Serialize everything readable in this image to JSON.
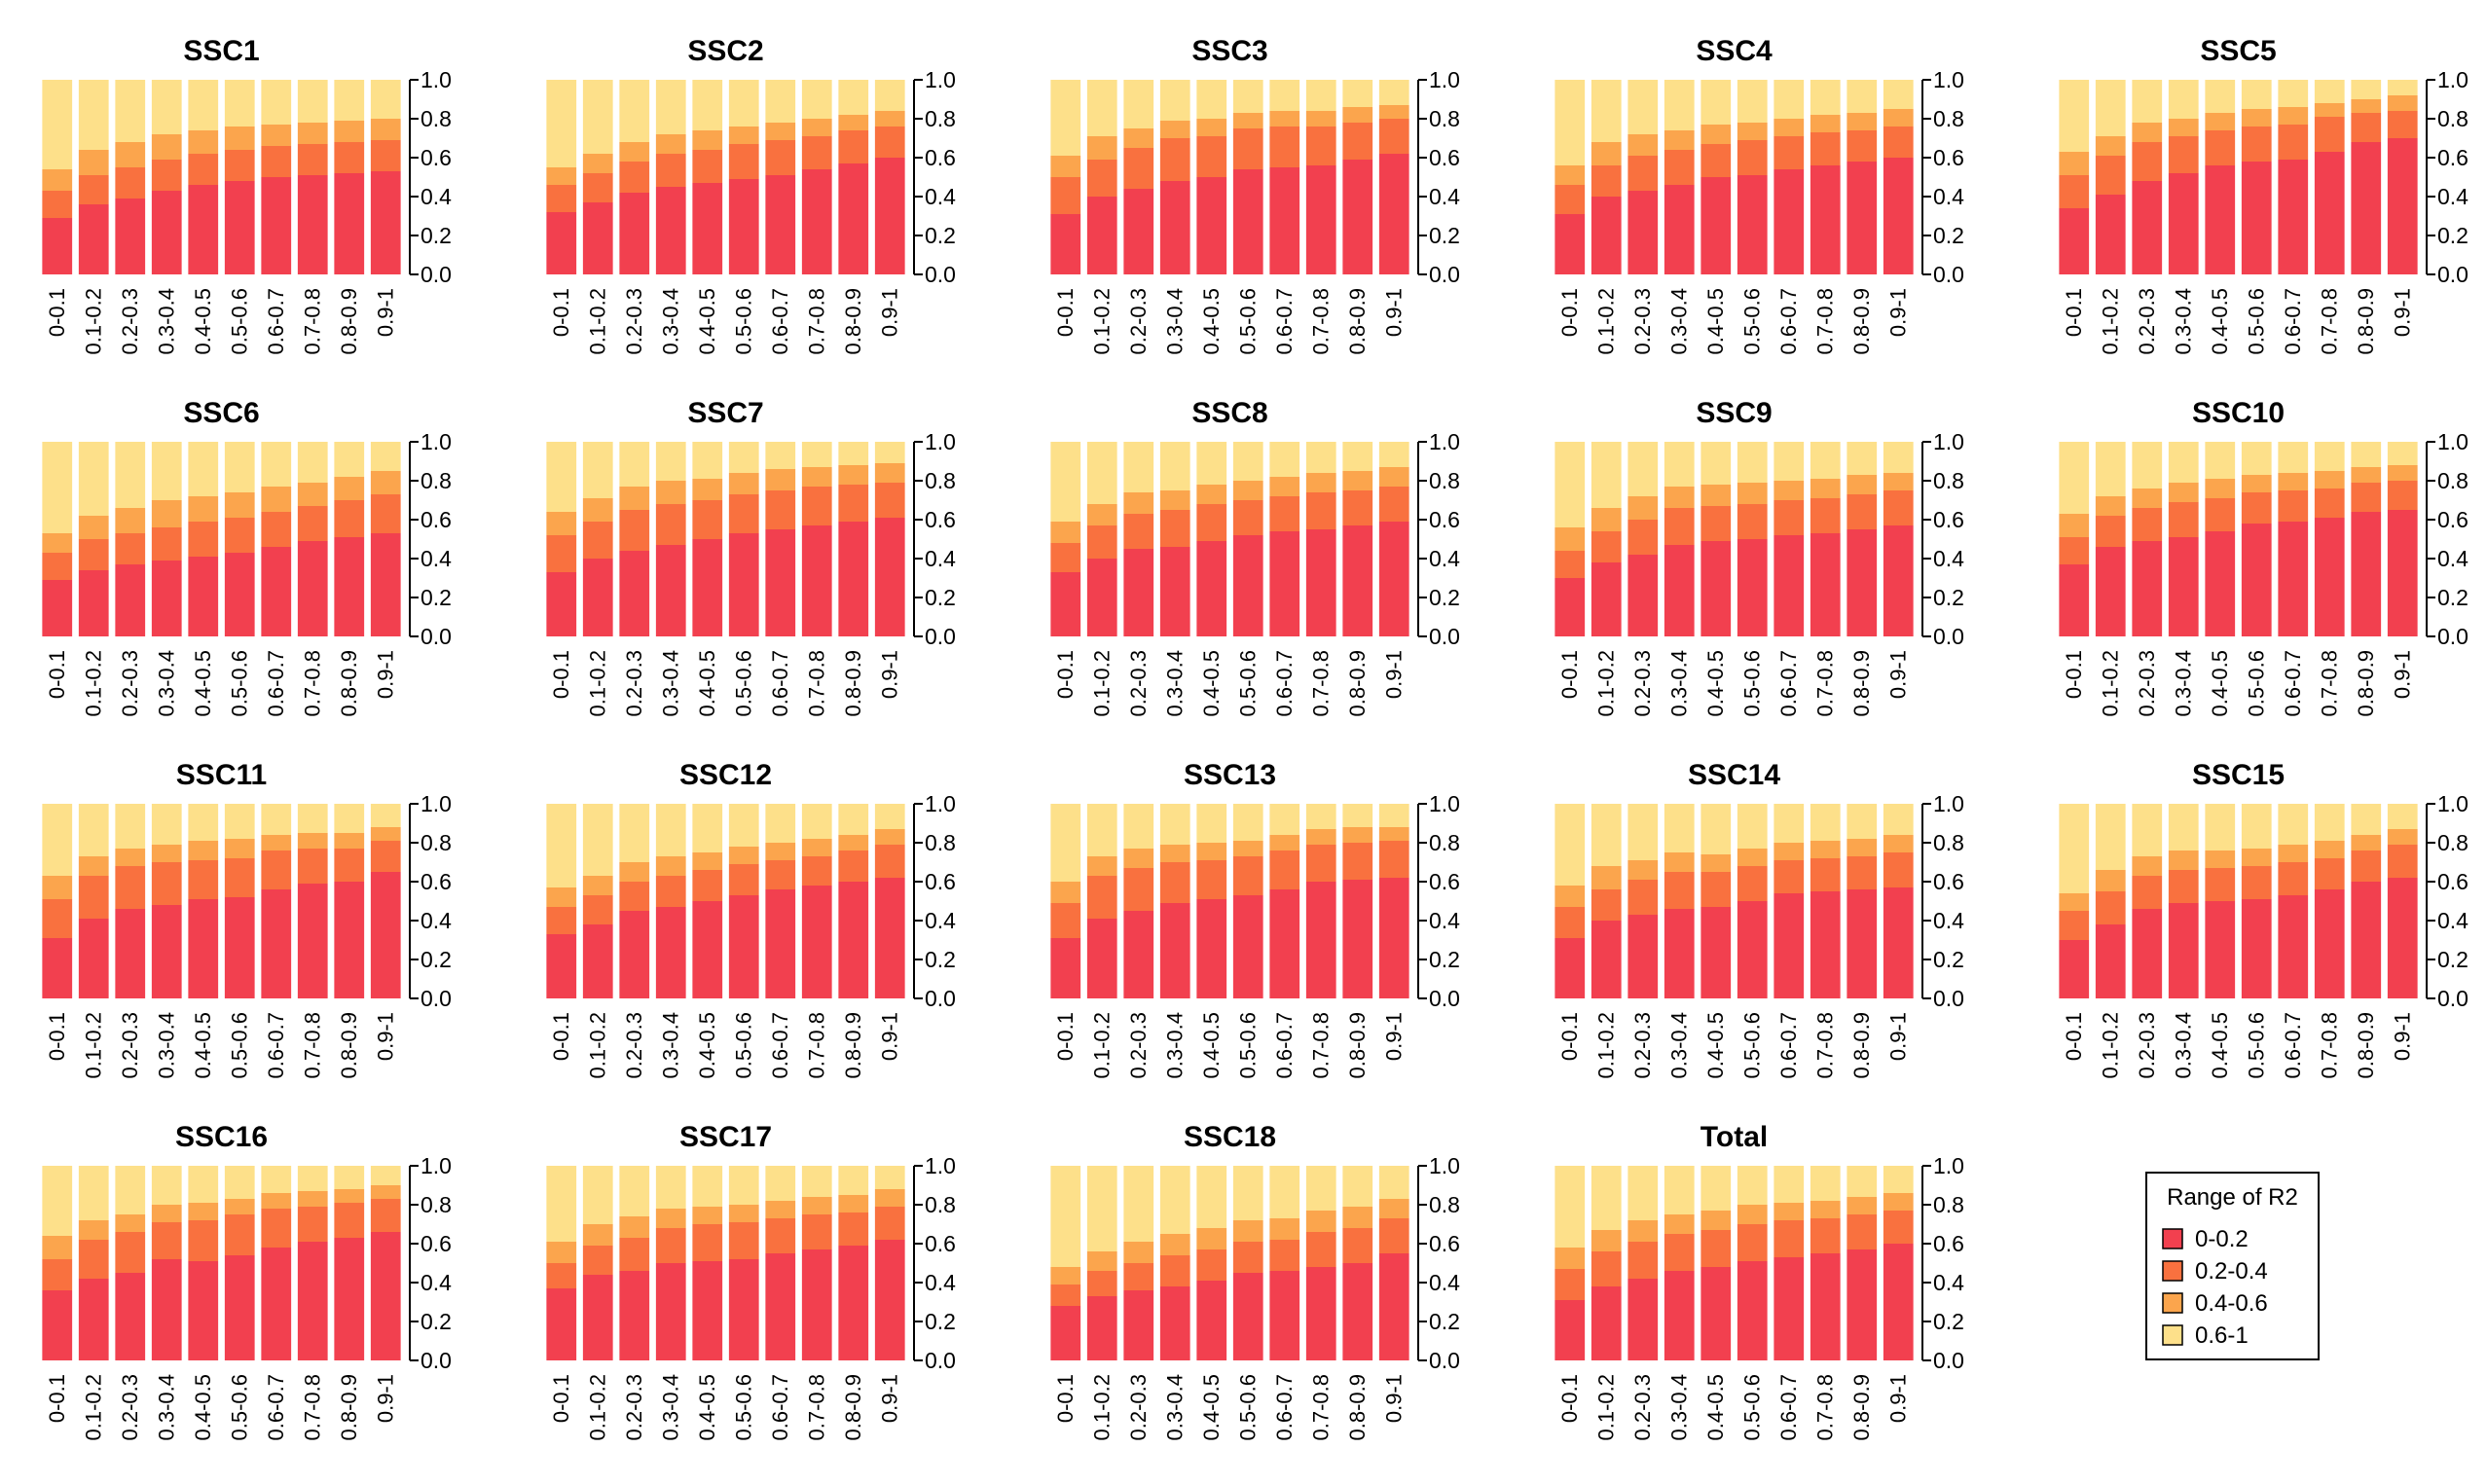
{
  "chart_data": {
    "type": "bar",
    "stacked": true,
    "categories": [
      "0-0.1",
      "0.1-0.2",
      "0.2-0.3",
      "0.3-0.4",
      "0.4-0.5",
      "0.5-0.6",
      "0.6-0.7",
      "0.7-0.8",
      "0.8-0.9",
      "0.9-1"
    ],
    "ylim": [
      0,
      1
    ],
    "yticks": [
      "0.0",
      "0.2",
      "0.4",
      "0.6",
      "0.8",
      "1.0"
    ],
    "legend": {
      "title": "Range of R2",
      "position": "bottom-right",
      "entries": [
        {
          "label": "0-0.2",
          "color": "#f2404f"
        },
        {
          "label": "0.2-0.4",
          "color": "#f9713f"
        },
        {
          "label": "0.4-0.6",
          "color": "#fba54d"
        },
        {
          "label": "0.6-1",
          "color": "#fde08a"
        }
      ]
    },
    "panels": [
      {
        "title": "SSC1",
        "series": {
          "0-0.2": [
            0.29,
            0.36,
            0.39,
            0.43,
            0.46,
            0.48,
            0.5,
            0.51,
            0.52,
            0.53
          ],
          "0.2-0.4": [
            0.14,
            0.15,
            0.16,
            0.16,
            0.16,
            0.16,
            0.16,
            0.16,
            0.16,
            0.16
          ],
          "0.4-0.6": [
            0.11,
            0.13,
            0.13,
            0.13,
            0.12,
            0.12,
            0.11,
            0.11,
            0.11,
            0.11
          ]
        }
      },
      {
        "title": "SSC2",
        "series": {
          "0-0.2": [
            0.32,
            0.37,
            0.42,
            0.45,
            0.47,
            0.49,
            0.51,
            0.54,
            0.57,
            0.6
          ],
          "0.2-0.4": [
            0.14,
            0.15,
            0.16,
            0.17,
            0.17,
            0.18,
            0.18,
            0.17,
            0.17,
            0.16
          ],
          "0.4-0.6": [
            0.09,
            0.1,
            0.1,
            0.1,
            0.1,
            0.09,
            0.09,
            0.09,
            0.08,
            0.08
          ]
        }
      },
      {
        "title": "SSC3",
        "series": {
          "0-0.2": [
            0.31,
            0.4,
            0.44,
            0.48,
            0.5,
            0.54,
            0.55,
            0.56,
            0.59,
            0.62
          ],
          "0.2-0.4": [
            0.19,
            0.19,
            0.21,
            0.22,
            0.21,
            0.21,
            0.21,
            0.2,
            0.19,
            0.18
          ],
          "0.4-0.6": [
            0.11,
            0.12,
            0.1,
            0.09,
            0.09,
            0.08,
            0.08,
            0.08,
            0.08,
            0.07
          ]
        }
      },
      {
        "title": "SSC4",
        "series": {
          "0-0.2": [
            0.31,
            0.4,
            0.43,
            0.46,
            0.5,
            0.51,
            0.54,
            0.56,
            0.58,
            0.6
          ],
          "0.2-0.4": [
            0.15,
            0.16,
            0.18,
            0.18,
            0.17,
            0.18,
            0.17,
            0.17,
            0.16,
            0.16
          ],
          "0.4-0.6": [
            0.1,
            0.12,
            0.11,
            0.1,
            0.1,
            0.09,
            0.09,
            0.09,
            0.09,
            0.09
          ]
        }
      },
      {
        "title": "SSC5",
        "series": {
          "0-0.2": [
            0.34,
            0.41,
            0.48,
            0.52,
            0.56,
            0.58,
            0.59,
            0.63,
            0.68,
            0.7
          ],
          "0.2-0.4": [
            0.17,
            0.2,
            0.2,
            0.19,
            0.18,
            0.18,
            0.18,
            0.18,
            0.15,
            0.14
          ],
          "0.4-0.6": [
            0.12,
            0.1,
            0.1,
            0.09,
            0.09,
            0.09,
            0.09,
            0.07,
            0.07,
            0.08
          ]
        }
      },
      {
        "title": "SSC6",
        "series": {
          "0-0.2": [
            0.29,
            0.34,
            0.37,
            0.39,
            0.41,
            0.43,
            0.46,
            0.49,
            0.51,
            0.53
          ],
          "0.2-0.4": [
            0.14,
            0.16,
            0.16,
            0.17,
            0.18,
            0.18,
            0.18,
            0.18,
            0.19,
            0.2
          ],
          "0.4-0.6": [
            0.1,
            0.12,
            0.13,
            0.14,
            0.13,
            0.13,
            0.13,
            0.12,
            0.12,
            0.12
          ]
        }
      },
      {
        "title": "SSC7",
        "series": {
          "0-0.2": [
            0.33,
            0.4,
            0.44,
            0.47,
            0.5,
            0.53,
            0.55,
            0.57,
            0.59,
            0.61
          ],
          "0.2-0.4": [
            0.19,
            0.19,
            0.21,
            0.21,
            0.2,
            0.2,
            0.2,
            0.2,
            0.19,
            0.18
          ],
          "0.4-0.6": [
            0.12,
            0.12,
            0.12,
            0.12,
            0.11,
            0.11,
            0.11,
            0.1,
            0.1,
            0.1
          ]
        }
      },
      {
        "title": "SSC8",
        "series": {
          "0-0.2": [
            0.33,
            0.4,
            0.45,
            0.46,
            0.49,
            0.52,
            0.54,
            0.55,
            0.57,
            0.59
          ],
          "0.2-0.4": [
            0.15,
            0.17,
            0.18,
            0.19,
            0.19,
            0.18,
            0.18,
            0.19,
            0.18,
            0.18
          ],
          "0.4-0.6": [
            0.11,
            0.11,
            0.11,
            0.1,
            0.1,
            0.1,
            0.1,
            0.1,
            0.1,
            0.1
          ]
        }
      },
      {
        "title": "SSC9",
        "series": {
          "0-0.2": [
            0.3,
            0.38,
            0.42,
            0.47,
            0.49,
            0.5,
            0.52,
            0.53,
            0.55,
            0.57
          ],
          "0.2-0.4": [
            0.14,
            0.16,
            0.18,
            0.19,
            0.18,
            0.18,
            0.18,
            0.18,
            0.18,
            0.18
          ],
          "0.4-0.6": [
            0.12,
            0.12,
            0.12,
            0.11,
            0.11,
            0.11,
            0.1,
            0.1,
            0.1,
            0.09
          ]
        }
      },
      {
        "title": "SSC10",
        "series": {
          "0-0.2": [
            0.37,
            0.46,
            0.49,
            0.51,
            0.54,
            0.58,
            0.59,
            0.61,
            0.64,
            0.65
          ],
          "0.2-0.4": [
            0.14,
            0.16,
            0.17,
            0.18,
            0.17,
            0.16,
            0.16,
            0.15,
            0.15,
            0.15
          ],
          "0.4-0.6": [
            0.12,
            0.1,
            0.1,
            0.1,
            0.1,
            0.09,
            0.09,
            0.09,
            0.08,
            0.08
          ]
        }
      },
      {
        "title": "SSC11",
        "series": {
          "0-0.2": [
            0.31,
            0.41,
            0.46,
            0.48,
            0.51,
            0.52,
            0.56,
            0.59,
            0.6,
            0.65
          ],
          "0.2-0.4": [
            0.2,
            0.22,
            0.22,
            0.22,
            0.2,
            0.2,
            0.2,
            0.18,
            0.17,
            0.16
          ],
          "0.4-0.6": [
            0.12,
            0.1,
            0.09,
            0.09,
            0.1,
            0.1,
            0.08,
            0.08,
            0.08,
            0.07
          ]
        }
      },
      {
        "title": "SSC12",
        "series": {
          "0-0.2": [
            0.33,
            0.38,
            0.45,
            0.47,
            0.5,
            0.53,
            0.56,
            0.58,
            0.6,
            0.62
          ],
          "0.2-0.4": [
            0.14,
            0.15,
            0.15,
            0.16,
            0.16,
            0.16,
            0.15,
            0.15,
            0.16,
            0.17
          ],
          "0.4-0.6": [
            0.1,
            0.1,
            0.1,
            0.1,
            0.09,
            0.09,
            0.09,
            0.09,
            0.08,
            0.08
          ]
        }
      },
      {
        "title": "SSC13",
        "series": {
          "0-0.2": [
            0.31,
            0.41,
            0.45,
            0.49,
            0.51,
            0.53,
            0.56,
            0.6,
            0.61,
            0.62
          ],
          "0.2-0.4": [
            0.18,
            0.22,
            0.22,
            0.21,
            0.2,
            0.2,
            0.2,
            0.19,
            0.19,
            0.19
          ],
          "0.4-0.6": [
            0.11,
            0.1,
            0.1,
            0.09,
            0.09,
            0.08,
            0.08,
            0.08,
            0.08,
            0.07
          ]
        }
      },
      {
        "title": "SSC14",
        "series": {
          "0-0.2": [
            0.31,
            0.4,
            0.43,
            0.46,
            0.47,
            0.5,
            0.54,
            0.55,
            0.56,
            0.57
          ],
          "0.2-0.4": [
            0.16,
            0.16,
            0.18,
            0.19,
            0.18,
            0.18,
            0.17,
            0.17,
            0.17,
            0.18
          ],
          "0.4-0.6": [
            0.11,
            0.12,
            0.1,
            0.1,
            0.09,
            0.09,
            0.09,
            0.09,
            0.09,
            0.09
          ]
        }
      },
      {
        "title": "SSC15",
        "series": {
          "0-0.2": [
            0.3,
            0.38,
            0.46,
            0.49,
            0.5,
            0.51,
            0.53,
            0.56,
            0.6,
            0.62
          ],
          "0.2-0.4": [
            0.15,
            0.17,
            0.17,
            0.17,
            0.17,
            0.17,
            0.17,
            0.16,
            0.16,
            0.17
          ],
          "0.4-0.6": [
            0.09,
            0.11,
            0.1,
            0.1,
            0.09,
            0.09,
            0.09,
            0.09,
            0.08,
            0.08
          ]
        }
      },
      {
        "title": "SSC16",
        "series": {
          "0-0.2": [
            0.36,
            0.42,
            0.45,
            0.52,
            0.51,
            0.54,
            0.58,
            0.61,
            0.63,
            0.66
          ],
          "0.2-0.4": [
            0.16,
            0.2,
            0.21,
            0.19,
            0.21,
            0.21,
            0.2,
            0.18,
            0.18,
            0.17
          ],
          "0.4-0.6": [
            0.12,
            0.1,
            0.09,
            0.09,
            0.09,
            0.08,
            0.08,
            0.08,
            0.07,
            0.07
          ]
        }
      },
      {
        "title": "SSC17",
        "series": {
          "0-0.2": [
            0.37,
            0.44,
            0.46,
            0.5,
            0.51,
            0.52,
            0.55,
            0.57,
            0.59,
            0.62
          ],
          "0.2-0.4": [
            0.13,
            0.15,
            0.17,
            0.18,
            0.19,
            0.19,
            0.18,
            0.18,
            0.17,
            0.17
          ],
          "0.4-0.6": [
            0.11,
            0.11,
            0.11,
            0.1,
            0.09,
            0.09,
            0.09,
            0.09,
            0.09,
            0.09
          ]
        }
      },
      {
        "title": "SSC18",
        "series": {
          "0-0.2": [
            0.28,
            0.33,
            0.36,
            0.38,
            0.41,
            0.45,
            0.46,
            0.48,
            0.5,
            0.55
          ],
          "0.2-0.4": [
            0.11,
            0.13,
            0.14,
            0.16,
            0.16,
            0.16,
            0.16,
            0.18,
            0.18,
            0.18
          ],
          "0.4-0.6": [
            0.09,
            0.1,
            0.11,
            0.11,
            0.11,
            0.11,
            0.11,
            0.11,
            0.11,
            0.1
          ]
        }
      },
      {
        "title": "Total",
        "series": {
          "0-0.2": [
            0.31,
            0.38,
            0.42,
            0.46,
            0.48,
            0.51,
            0.53,
            0.55,
            0.57,
            0.6
          ],
          "0.2-0.4": [
            0.16,
            0.18,
            0.19,
            0.19,
            0.19,
            0.19,
            0.19,
            0.18,
            0.18,
            0.17
          ],
          "0.4-0.6": [
            0.11,
            0.11,
            0.11,
            0.1,
            0.1,
            0.1,
            0.09,
            0.09,
            0.09,
            0.09
          ]
        }
      }
    ]
  }
}
